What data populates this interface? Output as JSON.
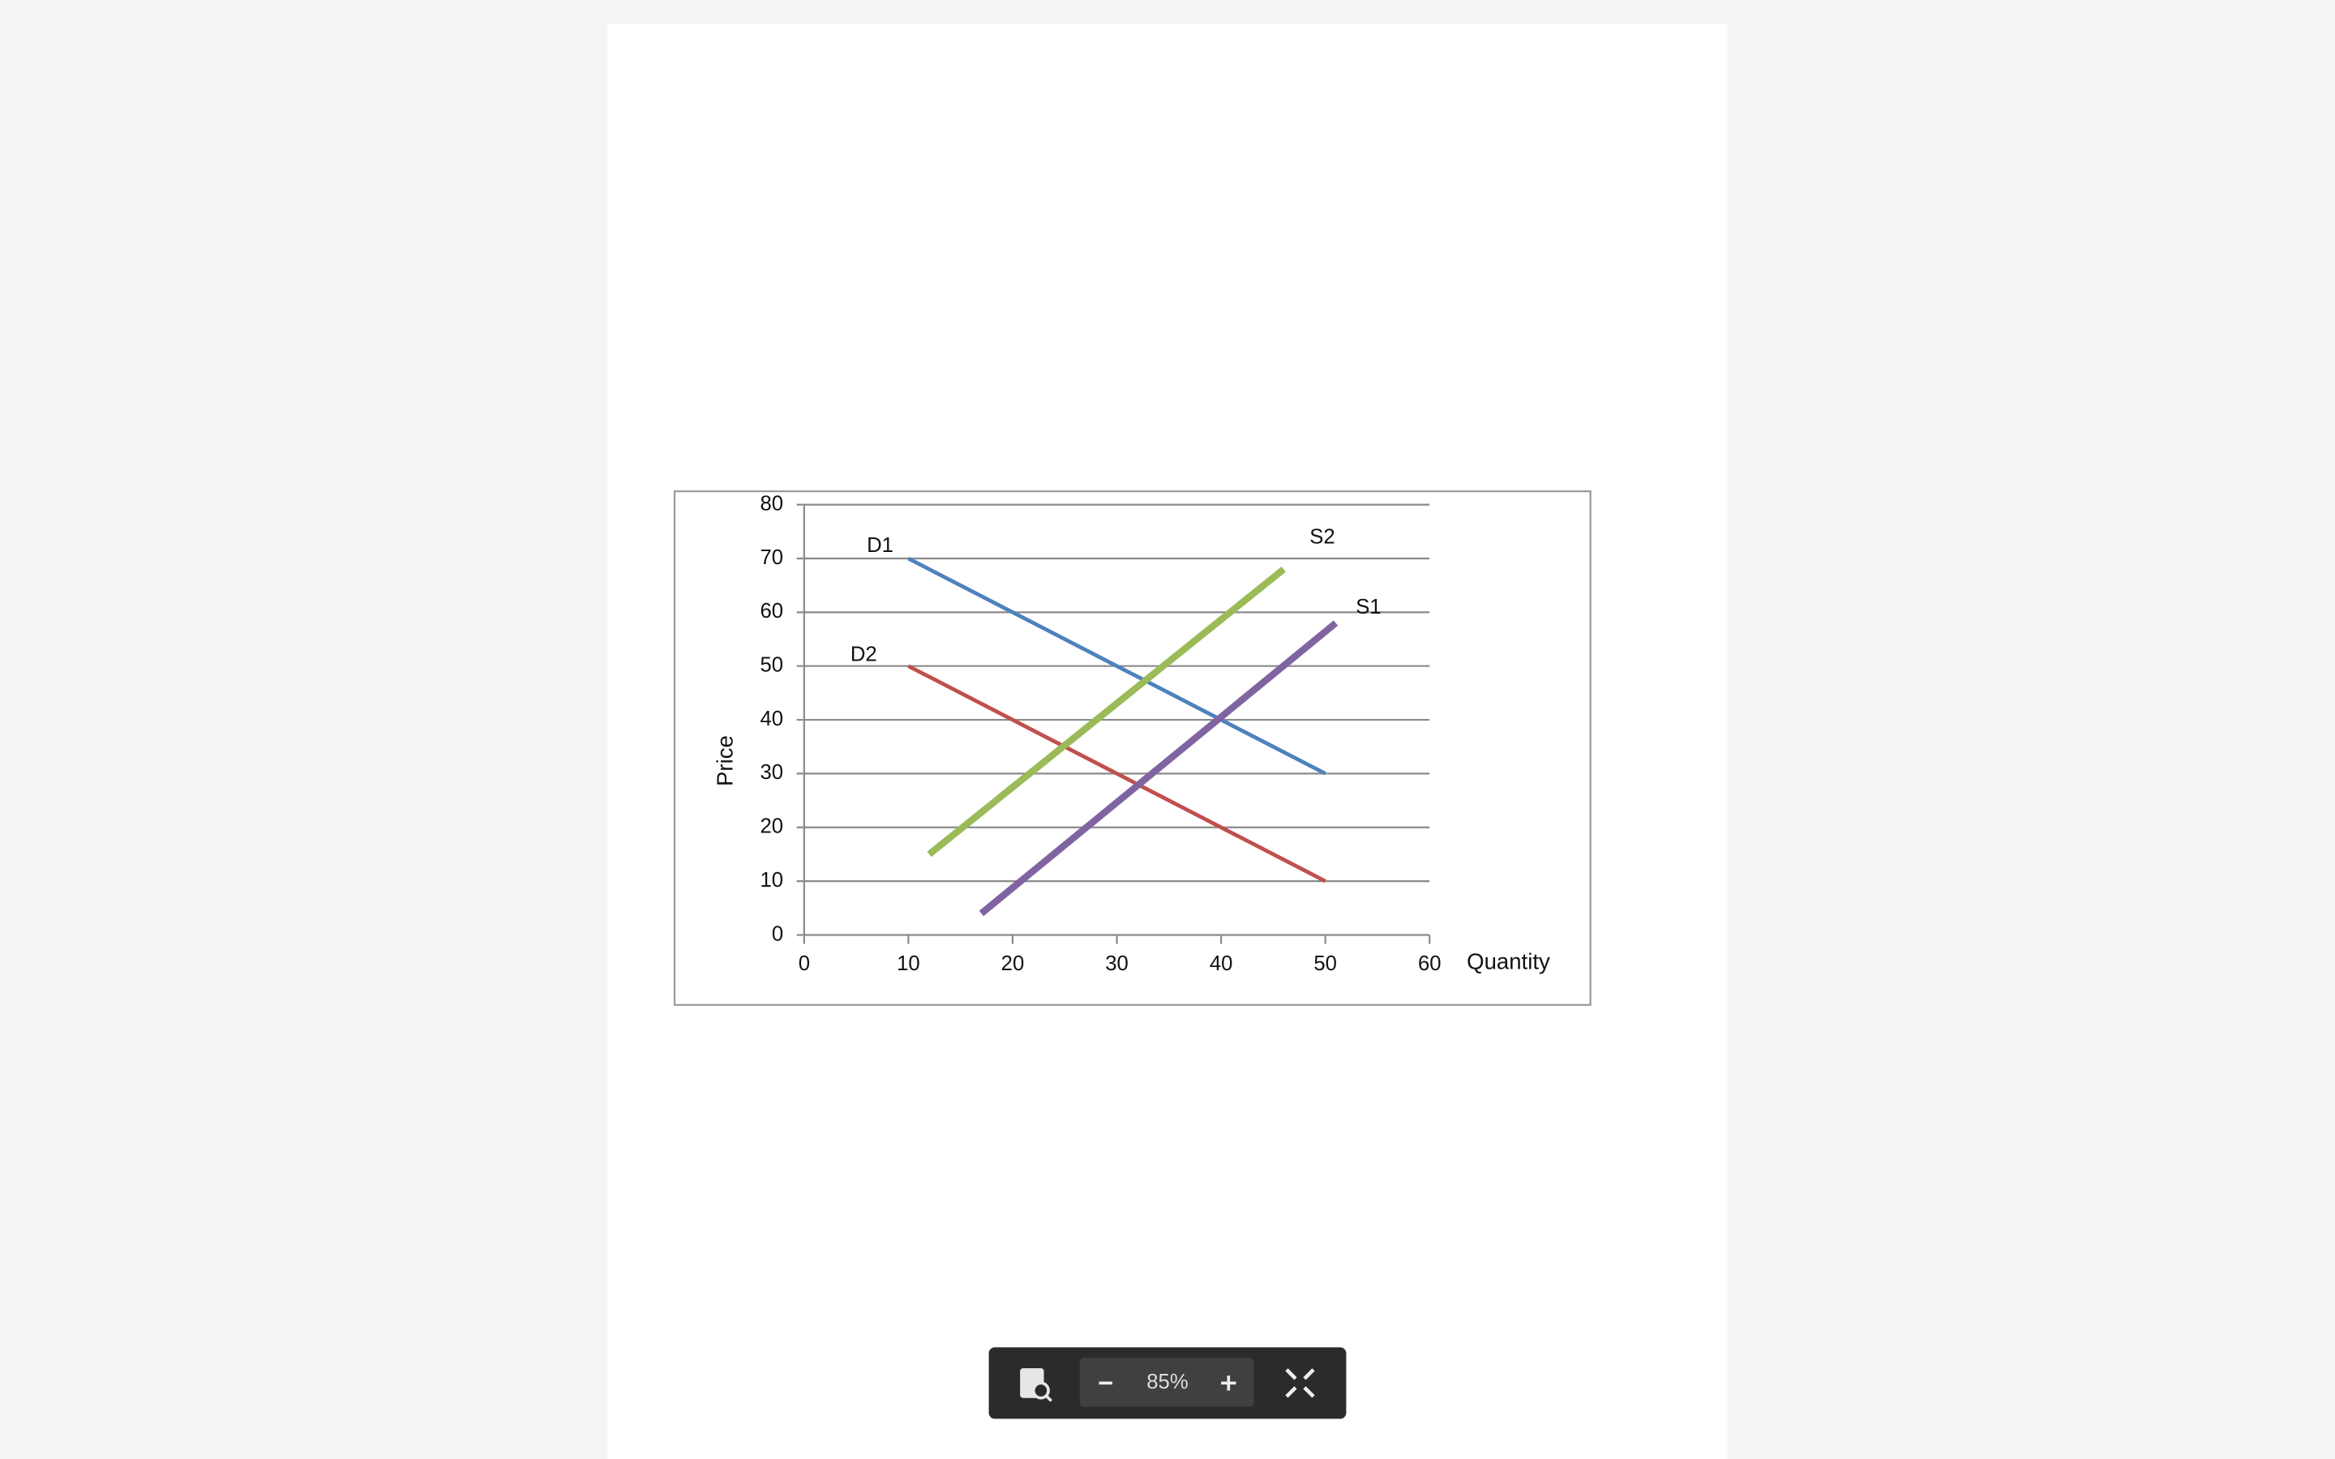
{
  "chart_data": {
    "type": "line",
    "xlabel": "Quantity",
    "ylabel": "Price",
    "xlim": [
      0,
      60
    ],
    "xticks": [
      0,
      10,
      20,
      30,
      40,
      50,
      60
    ],
    "ylim": [
      0,
      80
    ],
    "yticks": [
      0,
      10,
      20,
      30,
      40,
      50,
      60,
      70,
      80
    ],
    "grid": true,
    "series": [
      {
        "name": "D1",
        "color": "#4f81bd",
        "x": [
          10,
          50
        ],
        "values": [
          70,
          30
        ]
      },
      {
        "name": "D2",
        "color": "#c0504d",
        "x": [
          10,
          50
        ],
        "values": [
          50,
          10
        ]
      },
      {
        "name": "S2",
        "color": "#9bbb59",
        "x": [
          12,
          46
        ],
        "values": [
          15,
          68
        ]
      },
      {
        "name": "S1",
        "color": "#8064a2",
        "x": [
          17,
          51
        ],
        "values": [
          4,
          58
        ]
      }
    ]
  },
  "toolbar": {
    "zoom": "85%"
  }
}
